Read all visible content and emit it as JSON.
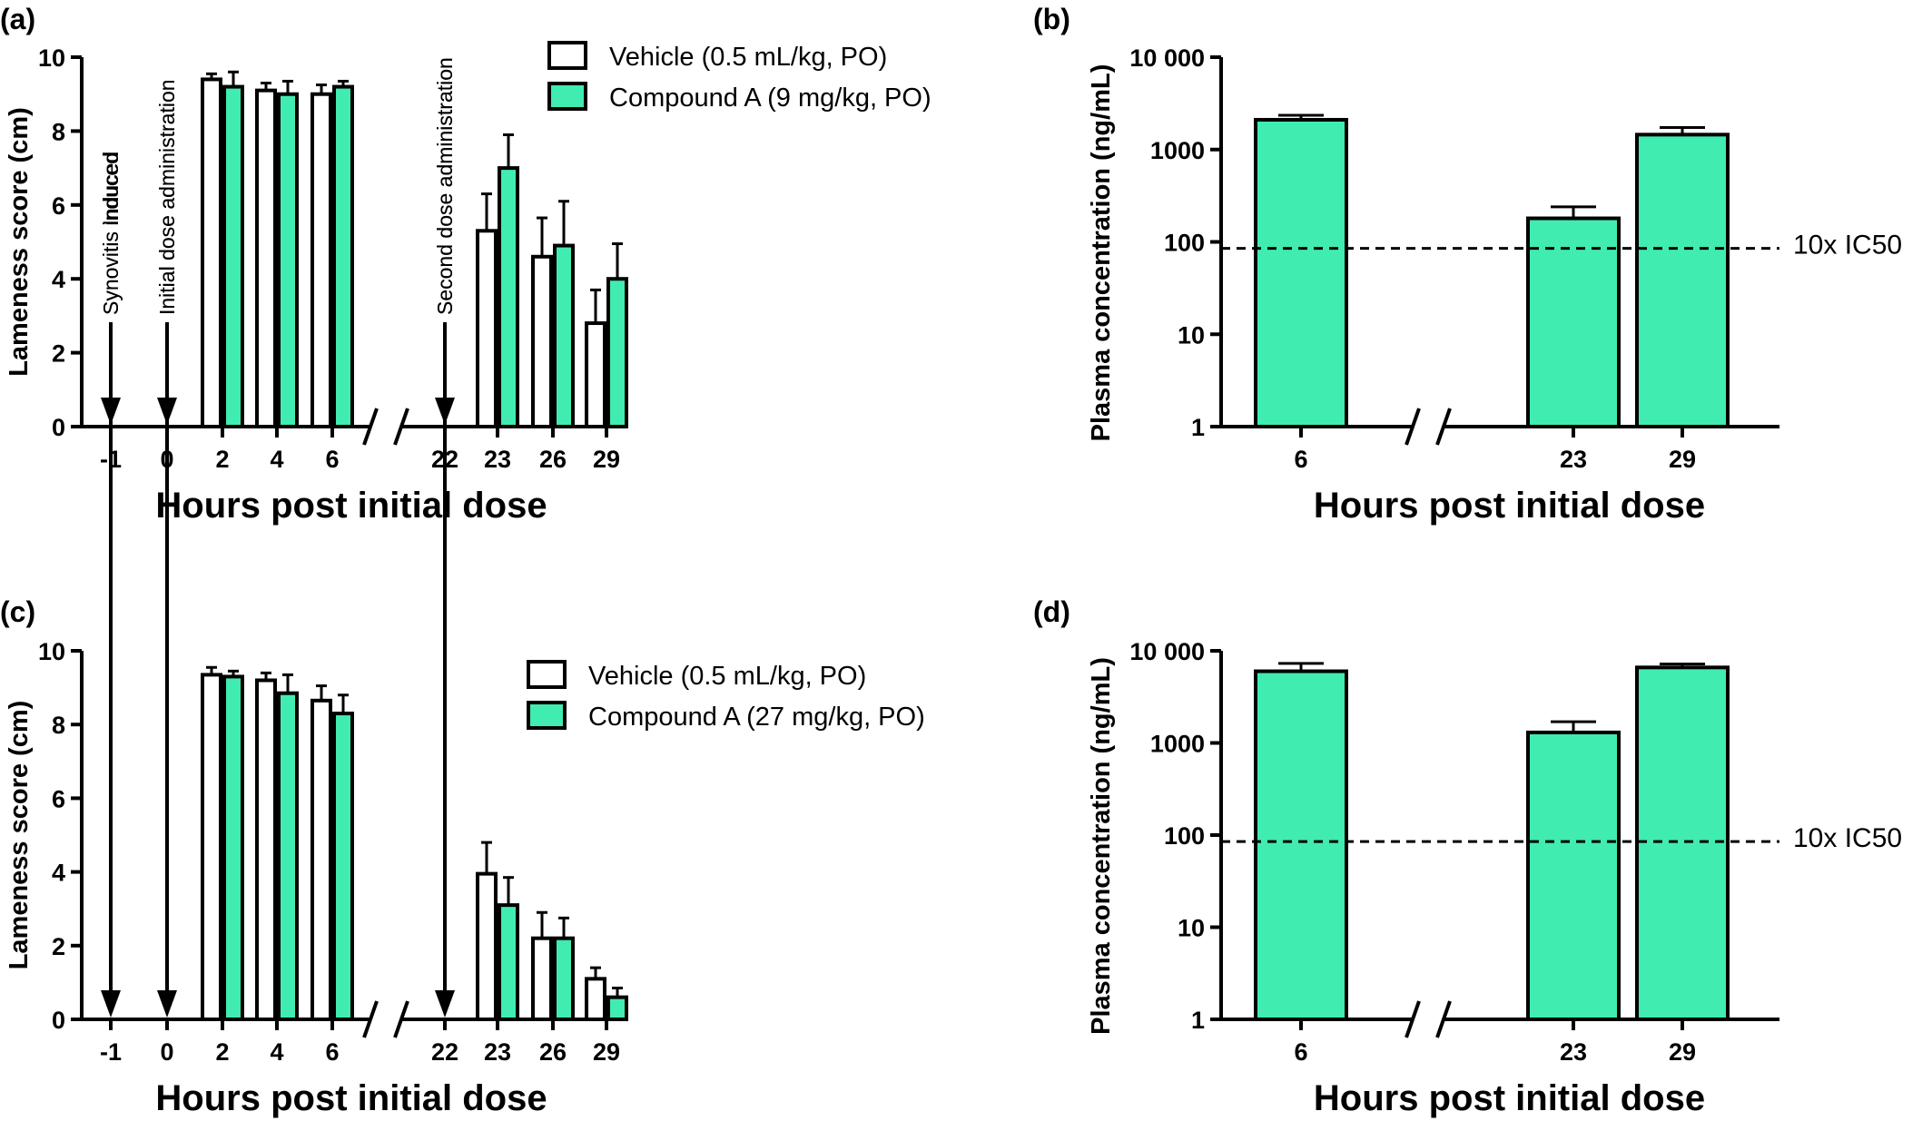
{
  "colors": {
    "vehicle": "#ffffff",
    "compound": "#40ecb0",
    "stroke": "#000000"
  },
  "chart_data": [
    {
      "panel": "(a)",
      "type": "bar",
      "xlabel": "Hours post initial dose",
      "ylabel": "Lameness score (cm)",
      "ylim": [
        0,
        10
      ],
      "yticks": [
        "0",
        "2",
        "4",
        "6",
        "8",
        "10"
      ],
      "categories": [
        "-1",
        "0",
        "2",
        "4",
        "6",
        "22",
        "23",
        "26",
        "29"
      ],
      "axis_break_between": [
        "6",
        "22"
      ],
      "legend_position": "top-right",
      "series": [
        {
          "name": "Vehicle (0.5 mL/kg, PO)",
          "values": [
            null,
            null,
            9.4,
            9.1,
            9.0,
            null,
            5.3,
            4.6,
            2.8
          ],
          "errors": [
            null,
            null,
            0.15,
            0.2,
            0.25,
            null,
            1.0,
            1.05,
            0.9
          ]
        },
        {
          "name": "Compound A (9 mg/kg, PO)",
          "values": [
            null,
            null,
            9.2,
            9.0,
            9.2,
            null,
            7.0,
            4.9,
            4.0
          ],
          "errors": [
            null,
            null,
            0.4,
            0.35,
            0.15,
            null,
            0.9,
            1.2,
            0.95
          ]
        }
      ],
      "annotations": [
        {
          "text": "Synovitis induced",
          "at": "-1"
        },
        {
          "text": "Initial dose administration",
          "at": "0"
        },
        {
          "text": "Second  dose administration",
          "at": "22"
        }
      ]
    },
    {
      "panel": "(b)",
      "type": "bar",
      "xlabel": "Hours post initial dose",
      "ylabel": "Plasma  concentration  (ng/mL)",
      "yscale": "log",
      "ylim": [
        1,
        10000
      ],
      "yticks": [
        "1",
        "10",
        "100",
        "1000",
        "10 000"
      ],
      "categories": [
        "6",
        "23",
        "29"
      ],
      "axis_break_between": [
        "6",
        "23"
      ],
      "series": [
        {
          "name": "Compound A",
          "values": [
            2100,
            180,
            1450
          ],
          "errors": [
            250,
            60,
            280
          ]
        }
      ],
      "reference_line": {
        "label": "10x IC50",
        "value": 85
      }
    },
    {
      "panel": "(c)",
      "type": "bar",
      "xlabel": "Hours post initial dose",
      "ylabel": "Lameness score (cm)",
      "ylim": [
        0,
        10
      ],
      "yticks": [
        "0",
        "2",
        "4",
        "6",
        "8",
        "10"
      ],
      "categories": [
        "-1",
        "0",
        "2",
        "4",
        "6",
        "22",
        "23",
        "26",
        "29"
      ],
      "axis_break_between": [
        "6",
        "22"
      ],
      "legend_position": "top-right",
      "series": [
        {
          "name": "Vehicle (0.5 mL/kg, PO)",
          "values": [
            null,
            null,
            9.35,
            9.2,
            8.65,
            null,
            3.95,
            2.2,
            1.1
          ],
          "errors": [
            null,
            null,
            0.2,
            0.2,
            0.4,
            null,
            0.85,
            0.7,
            0.3
          ]
        },
        {
          "name": "Compound  A (27 mg/kg, PO)",
          "values": [
            null,
            null,
            9.3,
            8.85,
            8.3,
            null,
            3.1,
            2.2,
            0.6
          ],
          "errors": [
            null,
            null,
            0.15,
            0.5,
            0.5,
            null,
            0.75,
            0.55,
            0.25
          ]
        }
      ],
      "annotations": [
        {
          "text": "Synovitis Induced",
          "at": "-1"
        },
        {
          "text": "Initial dose administration",
          "at": "0"
        },
        {
          "text": "Second  dose administration",
          "at": "22"
        }
      ]
    },
    {
      "panel": "(d)",
      "type": "bar",
      "xlabel": "Hours post initial dose",
      "ylabel": "Plasma  concentration  (ng/mL)",
      "yscale": "log",
      "ylim": [
        1,
        10000
      ],
      "yticks": [
        "1",
        "10",
        "100",
        "1000",
        "10 000"
      ],
      "categories": [
        "6",
        "23",
        "29"
      ],
      "axis_break_between": [
        "6",
        "23"
      ],
      "series": [
        {
          "name": "Compound A",
          "values": [
            6000,
            1300,
            6600
          ],
          "errors": [
            1300,
            400,
            600
          ]
        }
      ],
      "reference_line": {
        "label": "10x IC50",
        "value": 85
      }
    }
  ]
}
